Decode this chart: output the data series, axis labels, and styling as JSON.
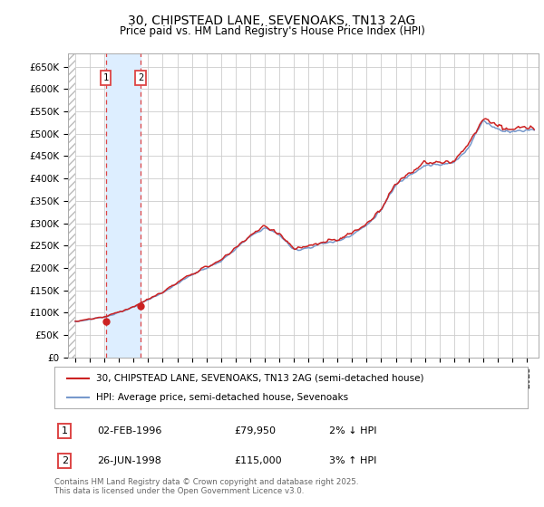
{
  "title": "30, CHIPSTEAD LANE, SEVENOAKS, TN13 2AG",
  "subtitle": "Price paid vs. HM Land Registry's House Price Index (HPI)",
  "legend_line1": "30, CHIPSTEAD LANE, SEVENOAKS, TN13 2AG (semi-detached house)",
  "legend_line2": "HPI: Average price, semi-detached house, Sevenoaks",
  "transaction1_date": "02-FEB-1996",
  "transaction1_price": "£79,950",
  "transaction1_hpi": "2% ↓ HPI",
  "transaction2_date": "26-JUN-1998",
  "transaction2_price": "£115,000",
  "transaction2_hpi": "3% ↑ HPI",
  "footer": "Contains HM Land Registry data © Crown copyright and database right 2025.\nThis data is licensed under the Open Government Licence v3.0.",
  "ylim": [
    0,
    680000
  ],
  "yticks": [
    0,
    50000,
    100000,
    150000,
    200000,
    250000,
    300000,
    350000,
    400000,
    450000,
    500000,
    550000,
    600000,
    650000
  ],
  "ytick_labels": [
    "£0",
    "£50K",
    "£100K",
    "£150K",
    "£200K",
    "£250K",
    "£300K",
    "£350K",
    "£400K",
    "£450K",
    "£500K",
    "£550K",
    "£600K",
    "£650K"
  ],
  "background_color": "#ffffff",
  "plot_bg_color": "#ffffff",
  "red_color": "#cc2222",
  "blue_color": "#7799cc",
  "vline_color": "#dd4444",
  "span_color": "#ddeeff",
  "transaction1_x": 1996.09,
  "transaction1_y": 79950,
  "transaction2_x": 1998.49,
  "transaction2_y": 115000,
  "xmin": 1993.5,
  "xmax": 2025.8,
  "hatch_xmax": 1994.0,
  "grid_color": "#cccccc",
  "spine_color": "#aaaaaa"
}
